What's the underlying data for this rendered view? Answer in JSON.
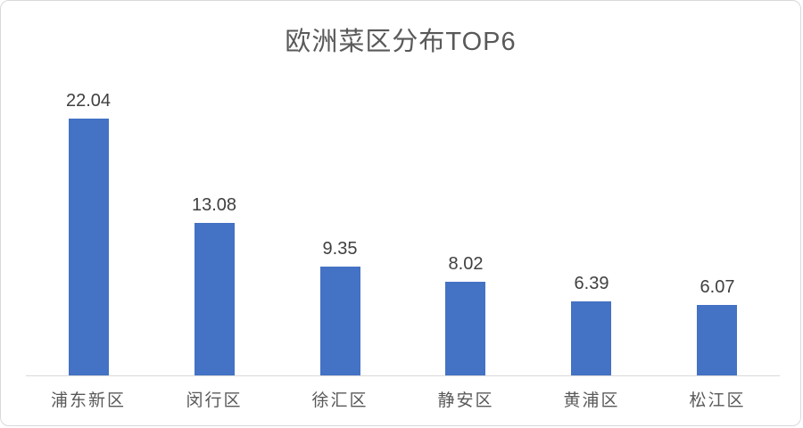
{
  "chart_data": {
    "type": "bar",
    "title": "欧洲菜区分布TOP6",
    "categories": [
      "浦东新区",
      "闵行区",
      "徐汇区",
      "静安区",
      "黄浦区",
      "松江区"
    ],
    "values": [
      22.04,
      13.08,
      9.35,
      8.02,
      6.39,
      6.07
    ],
    "value_labels": [
      "22.04",
      "13.08",
      "9.35",
      "8.02",
      "6.39",
      "6.07"
    ],
    "xlabel": "",
    "ylabel": "",
    "grid": "off",
    "legend": "none",
    "bar_color": "#4472c4",
    "title_color": "#595959",
    "data_label_color": "#404040",
    "category_label_color": "#595959",
    "axis_line_color": "#d9d9d9"
  }
}
